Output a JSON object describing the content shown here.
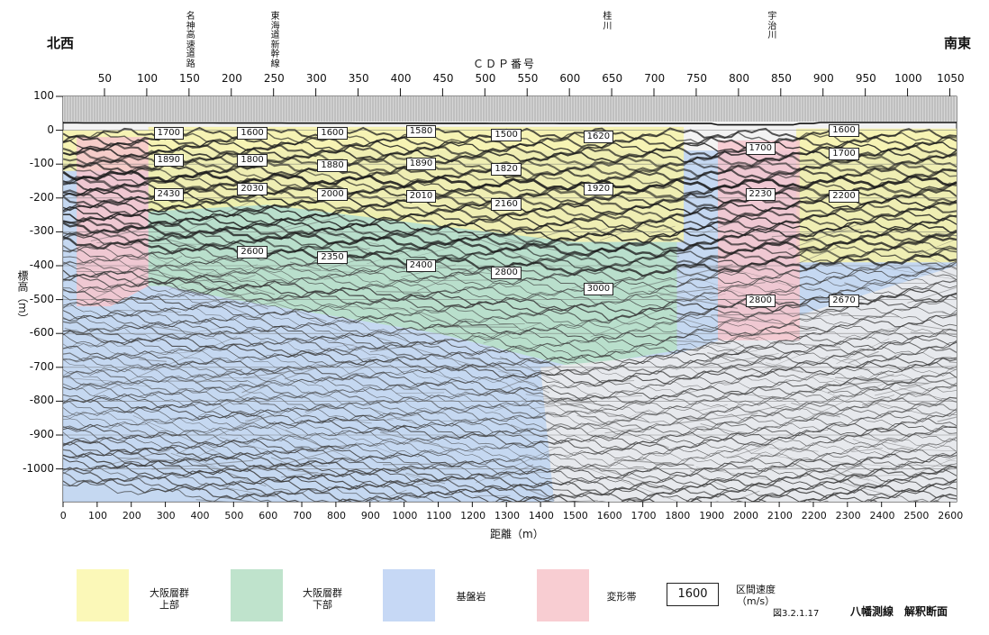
{
  "directions": {
    "left": "北西",
    "right": "南東"
  },
  "landmarks": [
    {
      "label": "名神高速道路",
      "cdp": 152
    },
    {
      "label": "東海道新幹線",
      "cdp": 252
    },
    {
      "label": "桂川",
      "cdp": 645
    },
    {
      "label": "宇治川",
      "cdp": 840
    }
  ],
  "top_axis": {
    "title": "ＣＤＰ番号",
    "ticks": [
      "50",
      "100",
      "150",
      "200",
      "250",
      "300",
      "350",
      "400",
      "450",
      "500",
      "550",
      "600",
      "650",
      "700",
      "750",
      "800",
      "850",
      "900",
      "950",
      "1000",
      "1050"
    ]
  },
  "left_axis": {
    "title": "標高（m）",
    "ticks": [
      "100",
      "0",
      "-100",
      "-200",
      "-300",
      "-400",
      "-500",
      "-600",
      "-700",
      "-800",
      "-900",
      "-1000"
    ]
  },
  "bottom_axis": {
    "title": "距離（m）",
    "ticks": [
      "0",
      "100",
      "200",
      "300",
      "400",
      "500",
      "600",
      "700",
      "800",
      "900",
      "1000",
      "1100",
      "1200",
      "1300",
      "1400",
      "1500",
      "1600",
      "1700",
      "1800",
      "1900",
      "2000",
      "2100",
      "2200",
      "2300",
      "2400",
      "2500",
      "2600"
    ]
  },
  "velocity_labels": [
    {
      "text": "1700",
      "dist": 300,
      "elev": -10
    },
    {
      "text": "1890",
      "dist": 300,
      "elev": -90
    },
    {
      "text": "2430",
      "dist": 300,
      "elev": -190
    },
    {
      "text": "1600",
      "dist": 545,
      "elev": -10
    },
    {
      "text": "1800",
      "dist": 545,
      "elev": -90
    },
    {
      "text": "2030",
      "dist": 545,
      "elev": -175
    },
    {
      "text": "2600",
      "dist": 545,
      "elev": -360
    },
    {
      "text": "1600",
      "dist": 780,
      "elev": -10
    },
    {
      "text": "1880",
      "dist": 780,
      "elev": -105
    },
    {
      "text": "2000",
      "dist": 780,
      "elev": -190
    },
    {
      "text": "2350",
      "dist": 780,
      "elev": -375
    },
    {
      "text": "1580",
      "dist": 1040,
      "elev": -5
    },
    {
      "text": "1890",
      "dist": 1040,
      "elev": -100
    },
    {
      "text": "2010",
      "dist": 1040,
      "elev": -195
    },
    {
      "text": "2400",
      "dist": 1040,
      "elev": -400
    },
    {
      "text": "1500",
      "dist": 1290,
      "elev": -15
    },
    {
      "text": "1820",
      "dist": 1290,
      "elev": -115
    },
    {
      "text": "2160",
      "dist": 1290,
      "elev": -220
    },
    {
      "text": "2800",
      "dist": 1290,
      "elev": -420
    },
    {
      "text": "1620",
      "dist": 1560,
      "elev": -20
    },
    {
      "text": "1920",
      "dist": 1560,
      "elev": -175
    },
    {
      "text": "3000",
      "dist": 1560,
      "elev": -470
    },
    {
      "text": "1700",
      "dist": 2035,
      "elev": -55
    },
    {
      "text": "2230",
      "dist": 2035,
      "elev": -190
    },
    {
      "text": "2800",
      "dist": 2035,
      "elev": -505
    },
    {
      "text": "1600",
      "dist": 2280,
      "elev": 0
    },
    {
      "text": "1700",
      "dist": 2280,
      "elev": -70
    },
    {
      "text": "2200",
      "dist": 2280,
      "elev": -195
    },
    {
      "text": "2670",
      "dist": 2280,
      "elev": -505
    }
  ],
  "zones": {
    "yellow": "#f6f2a8",
    "green": "#b6e0c6",
    "blue": "#bcd2f0",
    "pink": "#f6c6cc"
  },
  "legend": {
    "items": [
      {
        "label1": "大阪層群",
        "label2": "上部",
        "color": "#fbf8b8"
      },
      {
        "label1": "大阪層群",
        "label2": "下部",
        "color": "#bfe3cc"
      },
      {
        "label1": "基盤岩",
        "label2": "",
        "color": "#c6d8f5"
      },
      {
        "label1": "変形帯",
        "label2": "",
        "color": "#f8cdd2"
      }
    ],
    "velocity_sample": "1600",
    "velocity_label": "区間速度",
    "velocity_unit": "（m/s）"
  },
  "figure": {
    "number": "図3.2.1.17",
    "title": "八幡測線　解釈断面"
  }
}
